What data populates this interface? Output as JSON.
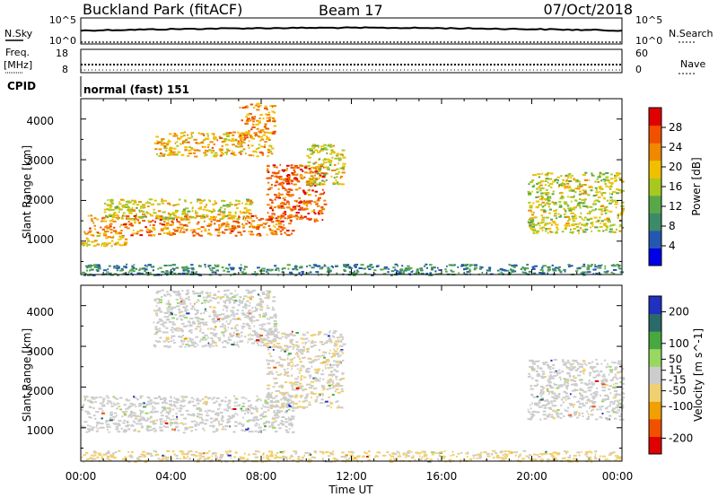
{
  "header": {
    "title": "Buckland Park (fitACF)",
    "beam": "Beam 17",
    "date": "07/Oct/2018"
  },
  "noise_panel": {
    "left_label": "N.Sky",
    "right_label": "N.Search",
    "left_ticks": [
      "10^5",
      "10^0"
    ],
    "right_ticks": [
      "10^5",
      "10^0"
    ]
  },
  "freq_panel": {
    "left_label_1": "Freq.",
    "left_label_2": "[MHz]",
    "right_label": "Nave",
    "left_ticks": [
      "18",
      "8"
    ],
    "right_ticks": [
      "60",
      "0"
    ]
  },
  "cpid_panel": {
    "label": "CPID",
    "mode": "normal (fast) 151"
  },
  "axes": {
    "xlabel": "Time UT",
    "x_ticks": [
      "00:00",
      "04:00",
      "08:00",
      "12:00",
      "16:00",
      "20:00",
      "00:00"
    ],
    "ylabel": "Slant Range [km]",
    "y_ticks": [
      "1000",
      "2000",
      "3000",
      "4000"
    ]
  },
  "colors": {
    "power_scale": [
      "#0000e8",
      "#2458b0",
      "#3c8a68",
      "#58a848",
      "#a8c820",
      "#f0c000",
      "#f08800",
      "#f05000",
      "#e00000"
    ],
    "velocity_scale": [
      "#e00000",
      "#f05000",
      "#f0a000",
      "#f0d070",
      "#cccccc",
      "#98d860",
      "#48a840",
      "#2a6a6a",
      "#2030c0"
    ]
  },
  "chart_data": [
    {
      "type": "heatmap",
      "title": "",
      "xlabel": "Time UT",
      "ylabel": "Slant Range [km]",
      "xlim": [
        0,
        24
      ],
      "ylim": [
        180,
        4500
      ],
      "colorbar": {
        "label": "Power [dB]",
        "ticks": [
          "4",
          "8",
          "12",
          "16",
          "20",
          "24",
          "28"
        ],
        "tick_values": [
          4,
          8,
          12,
          16,
          20,
          24,
          28
        ],
        "range": [
          0,
          32
        ]
      },
      "features": [
        {
          "t_start": 0.3,
          "t_end": 9.4,
          "r_start": 1150,
          "r_end": 1650,
          "value": 24
        },
        {
          "t_start": 0.0,
          "t_end": 2.0,
          "r_start": 900,
          "r_end": 1250,
          "value": 20
        },
        {
          "t_start": 1.0,
          "t_end": 7.5,
          "r_start": 1550,
          "r_end": 2050,
          "value": 18
        },
        {
          "t_start": 3.2,
          "t_end": 8.5,
          "r_start": 3100,
          "r_end": 3700,
          "value": 21
        },
        {
          "t_start": 7.0,
          "t_end": 8.6,
          "r_start": 3500,
          "r_end": 4400,
          "value": 23
        },
        {
          "t_start": 8.2,
          "t_end": 10.8,
          "r_start": 1500,
          "r_end": 2900,
          "value": 26
        },
        {
          "t_start": 10.0,
          "t_end": 11.6,
          "r_start": 2400,
          "r_end": 3400,
          "value": 17
        },
        {
          "t_start": 19.8,
          "t_end": 24.0,
          "r_start": 1200,
          "r_end": 2700,
          "value": 17
        },
        {
          "t_start": 0.0,
          "t_end": 24.0,
          "r_start": 180,
          "r_end": 450,
          "value": 9
        }
      ]
    },
    {
      "type": "heatmap",
      "title": "",
      "xlabel": "Time UT",
      "ylabel": "Slant Range [km]",
      "xlim": [
        0,
        24
      ],
      "ylim": [
        180,
        4500
      ],
      "colorbar": {
        "label": "Velocity [m s^-1]",
        "ticks": [
          "-200",
          "-100",
          "-50",
          "-15",
          "15",
          "50",
          "100",
          "200"
        ],
        "tick_values": [
          -200,
          -100,
          -50,
          -15,
          15,
          50,
          100,
          200
        ],
        "range": [
          -250,
          250
        ]
      },
      "features": [
        {
          "t_start": 0.0,
          "t_end": 9.4,
          "r_start": 900,
          "r_end": 1800,
          "value": 0
        },
        {
          "t_start": 3.2,
          "t_end": 8.6,
          "r_start": 3000,
          "r_end": 4400,
          "value": 0
        },
        {
          "t_start": 8.2,
          "t_end": 11.6,
          "r_start": 1500,
          "r_end": 3400,
          "value": -20
        },
        {
          "t_start": 19.8,
          "t_end": 24.0,
          "r_start": 1200,
          "r_end": 2700,
          "value": 0
        },
        {
          "t_start": 0.0,
          "t_end": 24.0,
          "r_start": 180,
          "r_end": 450,
          "value": -40
        }
      ]
    }
  ]
}
